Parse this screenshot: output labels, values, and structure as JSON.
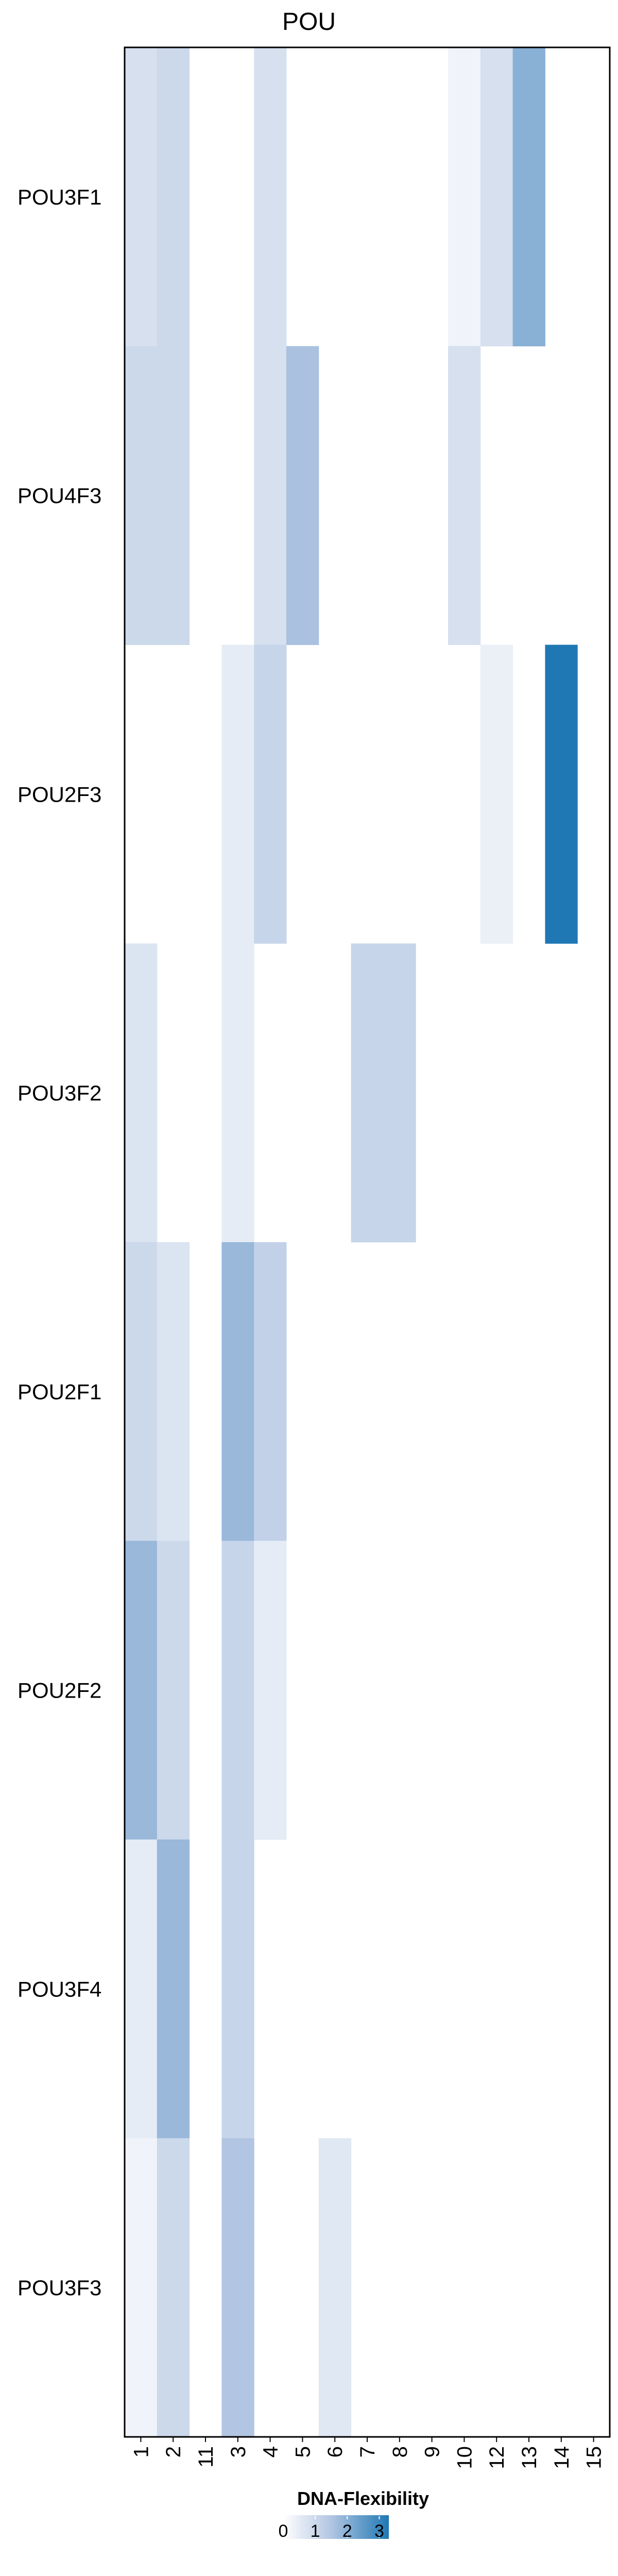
{
  "chart_data": {
    "type": "heatmap",
    "title": "POU",
    "rows": [
      "POU3F1",
      "POU4F3",
      "POU2F3",
      "POU3F2",
      "POU2F1",
      "POU2F2",
      "POU3F4",
      "POU3F3"
    ],
    "columns": [
      "1",
      "2",
      "11",
      "3",
      "4",
      "5",
      "6",
      "7",
      "8",
      "9",
      "10",
      "12",
      "13",
      "14",
      "15"
    ],
    "values": [
      [
        0.8,
        1.0,
        null,
        null,
        0.8,
        null,
        null,
        null,
        null,
        null,
        0.3,
        0.8,
        2.0,
        null,
        null
      ],
      [
        1.0,
        1.0,
        null,
        null,
        0.8,
        1.6,
        null,
        null,
        null,
        null,
        0.8,
        null,
        null,
        null,
        null
      ],
      [
        null,
        null,
        null,
        0.5,
        1.1,
        null,
        null,
        null,
        null,
        null,
        null,
        0.4,
        null,
        3.3,
        null
      ],
      [
        0.7,
        null,
        null,
        0.5,
        null,
        null,
        null,
        1.1,
        1.1,
        null,
        null,
        null,
        null,
        null,
        null
      ],
      [
        1.0,
        0.7,
        null,
        1.8,
        1.2,
        null,
        null,
        null,
        null,
        null,
        null,
        null,
        null,
        null,
        null
      ],
      [
        1.8,
        1.0,
        null,
        1.1,
        0.5,
        null,
        null,
        null,
        null,
        null,
        null,
        null,
        null,
        null,
        null
      ],
      [
        0.5,
        1.8,
        null,
        1.1,
        null,
        null,
        null,
        null,
        null,
        null,
        null,
        null,
        null,
        null,
        null
      ],
      [
        0.3,
        1.0,
        null,
        1.5,
        null,
        null,
        0.6,
        null,
        null,
        null,
        null,
        null,
        null,
        null,
        null
      ]
    ],
    "legend": {
      "title": "DNA-Flexibility",
      "ticks": [
        "0",
        "1",
        "2",
        "3"
      ],
      "range": [
        0,
        3.3
      ],
      "position": "bottom"
    },
    "colors": {
      "low": "#ffffff",
      "mid": "#b3c6e2",
      "high": "#1f78b4"
    },
    "grid": false
  }
}
